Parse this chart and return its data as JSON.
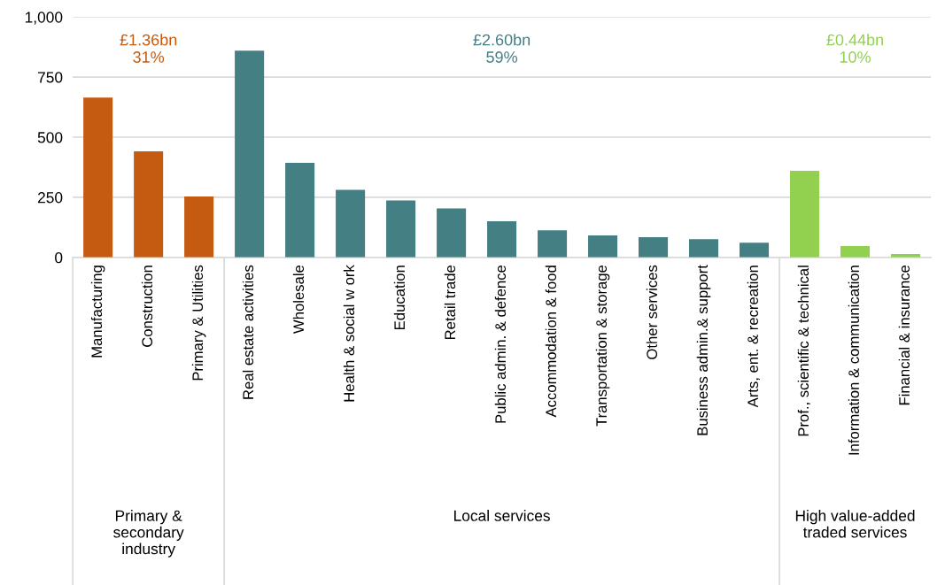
{
  "chart_data": {
    "type": "bar",
    "categories": [
      "Manufacturing",
      "Construction",
      "Primary & Utilities",
      "Real estate activities",
      "Wholesale",
      "Health & social w ork",
      "Education",
      "Retail trade",
      "Public admin. & defence",
      "Accommodation & food",
      "Transportation & storage",
      "Other services",
      "Business admin.& support",
      "Arts, ent. & recreation",
      "Prof., scientific & technical",
      "Information & communication",
      "Financial & insurance"
    ],
    "values": [
      665,
      441,
      253,
      860,
      393,
      281,
      237,
      204,
      150,
      113,
      91,
      84,
      76,
      61,
      360,
      47,
      14
    ],
    "colors": [
      "#c55a11",
      "#c55a11",
      "#c55a11",
      "#447f84",
      "#447f84",
      "#447f84",
      "#447f84",
      "#447f84",
      "#447f84",
      "#447f84",
      "#447f84",
      "#447f84",
      "#447f84",
      "#447f84",
      "#92d050",
      "#92d050",
      "#92d050"
    ],
    "ylim": [
      0,
      1000
    ],
    "yticks": [
      0,
      250,
      500,
      750,
      {
        "value": 1000,
        "label": "1,000"
      }
    ],
    "grid": "y",
    "annotations": [
      "£1.36bn\n31%",
      "£2.60bn\n59%",
      "£0.44bn\n10%",
      "Primary &\nsecondary\nindustry",
      "Local services",
      "High value-added\ntraded services"
    ]
  }
}
